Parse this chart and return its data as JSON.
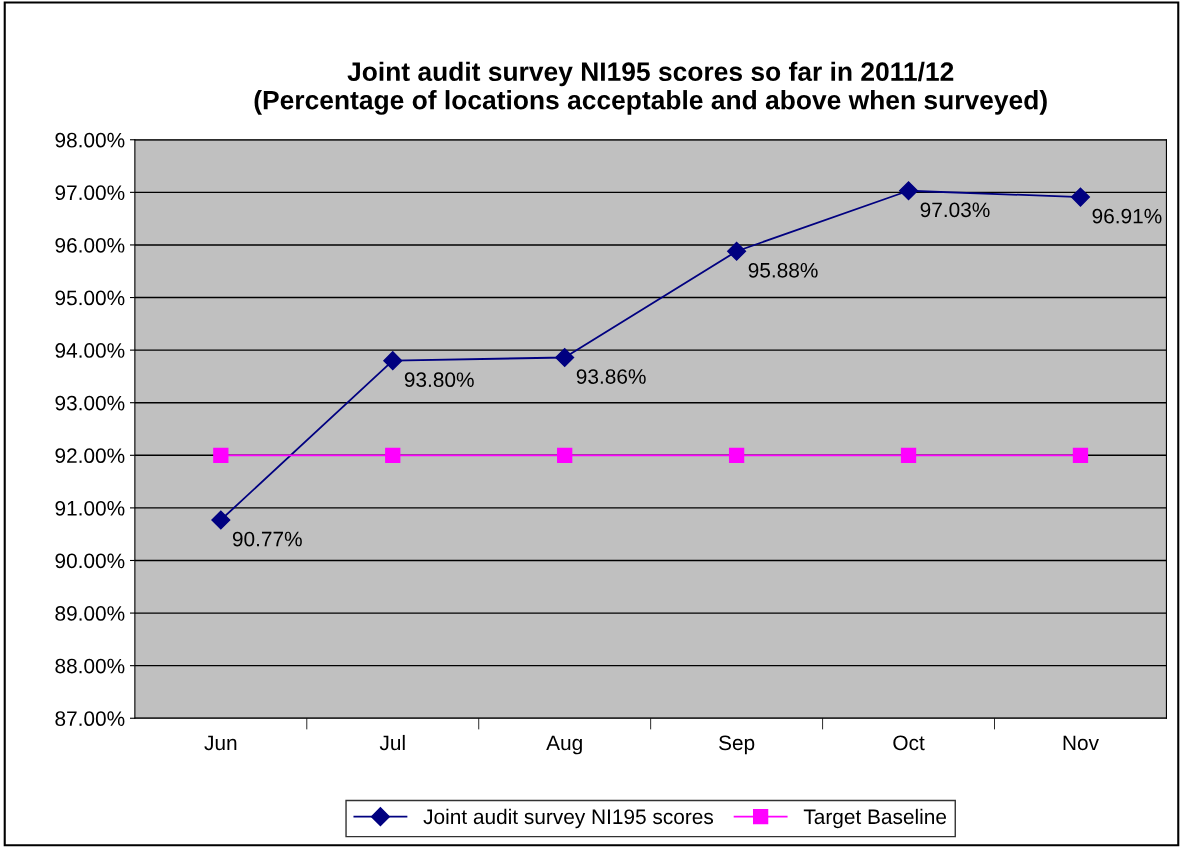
{
  "chart_data": {
    "type": "line",
    "title": "Joint audit survey NI195 scores so far in 2011/12\n(Percentage of locations acceptable and above when surveyed)",
    "categories": [
      "Jun",
      "Jul",
      "Aug",
      "Sep",
      "Oct",
      "Nov"
    ],
    "series": [
      {
        "name": "Joint audit survey NI195 scores",
        "color": "#000080",
        "marker": "diamond",
        "values": [
          90.77,
          93.8,
          93.86,
          95.88,
          97.03,
          96.91
        ],
        "value_labels": [
          "90.77%",
          "93.80%",
          "93.86%",
          "95.88%",
          "97.03%",
          "96.91%"
        ]
      },
      {
        "name": "Target Baseline",
        "color": "#ff00ff",
        "marker": "square",
        "values": [
          92,
          92,
          92,
          92,
          92,
          92
        ]
      }
    ],
    "ylim": [
      87,
      98
    ],
    "yticks": [
      {
        "value": 87,
        "label": "87.00%"
      },
      {
        "value": 88,
        "label": "88.00%"
      },
      {
        "value": 89,
        "label": "89.00%"
      },
      {
        "value": 90,
        "label": "90.00%"
      },
      {
        "value": 91,
        "label": "91.00%"
      },
      {
        "value": 92,
        "label": "92.00%"
      },
      {
        "value": 93,
        "label": "93.00%"
      },
      {
        "value": 94,
        "label": "94.00%"
      },
      {
        "value": 95,
        "label": "95.00%"
      },
      {
        "value": 96,
        "label": "96.00%"
      },
      {
        "value": 97,
        "label": "97.00%"
      },
      {
        "value": 98,
        "label": "98.00%"
      }
    ],
    "grid": "y",
    "legend": "bottom",
    "line_style": "solid"
  }
}
